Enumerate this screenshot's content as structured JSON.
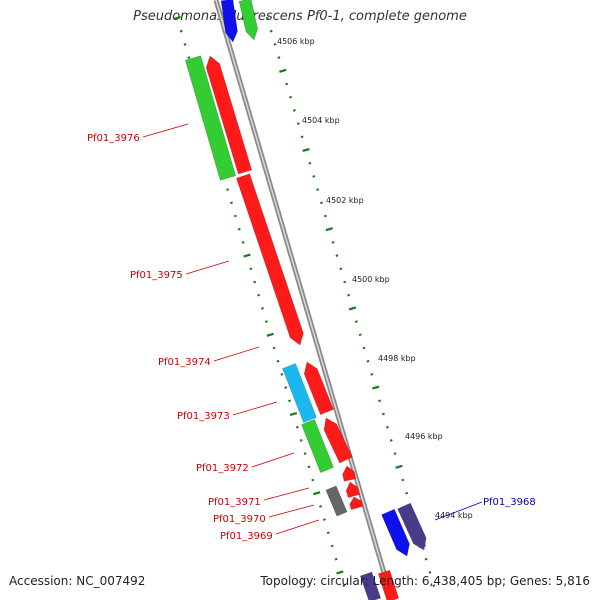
{
  "title": "Pseudomonas fluorescens Pf0-1, complete genome",
  "footer": {
    "accession": "Accession: NC_007492",
    "summary": "Topology: circular; Length: 6,438,405 bp; Genes: 5,816"
  },
  "colors": {
    "backbone": "#8a8a8a",
    "tick": "#1a7a1a",
    "forward_red": "#ff1a1a",
    "green": "#33cc33",
    "cyan": "#1ab8ee",
    "blue": "#1010ee",
    "purple": "#4a3a8c",
    "grey": "#666666",
    "label_red": "#cc0000",
    "label_blue": "#0000bb"
  },
  "axis_ticks": [
    {
      "label": "4506 kbp"
    },
    {
      "label": "4504 kbp"
    },
    {
      "label": "4502 kbp"
    },
    {
      "label": "4500 kbp"
    },
    {
      "label": "4498 kbp"
    },
    {
      "label": "4496 kbp"
    },
    {
      "label": "4494 kbp"
    }
  ],
  "gene_labels": [
    {
      "text": "Pf01_3976",
      "color": "red"
    },
    {
      "text": "Pf01_3975",
      "color": "red"
    },
    {
      "text": "Pf01_3974",
      "color": "red"
    },
    {
      "text": "Pf01_3973",
      "color": "red"
    },
    {
      "text": "Pf01_3972",
      "color": "red"
    },
    {
      "text": "Pf01_3971",
      "color": "red"
    },
    {
      "text": "Pf01_3970",
      "color": "red"
    },
    {
      "text": "Pf01_3969",
      "color": "red"
    },
    {
      "text": "Pf01_3968",
      "color": "blue"
    }
  ]
}
